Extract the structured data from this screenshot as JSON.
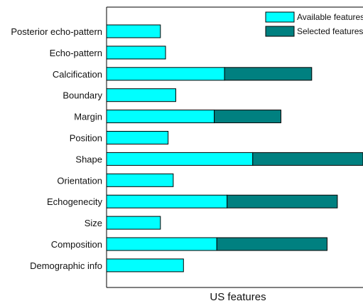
{
  "chart_data": {
    "type": "bar",
    "orientation": "horizontal",
    "stacked": true,
    "title": "",
    "xlabel": "US features",
    "ylabel": "",
    "xlim": [
      0,
      10
    ],
    "categories": [
      "Posterior echo-pattern",
      "Echo-pattern",
      "Calcification",
      "Boundary",
      "Margin",
      "Position",
      "Shape",
      "Orientation",
      "Echogenecity",
      "Size",
      "Composition",
      "Demographic info"
    ],
    "series": [
      {
        "name": "Available features",
        "color": "#00FFFF",
        "values": [
          2.1,
          2.3,
          4.6,
          2.7,
          4.2,
          2.4,
          5.7,
          2.6,
          4.7,
          2.1,
          4.3,
          3.0
        ]
      },
      {
        "name": "Selected features",
        "color": "#008080",
        "values": [
          0,
          0,
          3.4,
          0,
          2.6,
          0,
          4.3,
          0,
          4.3,
          0,
          4.3,
          0
        ]
      }
    ],
    "legend": {
      "position": "top-right"
    },
    "grid": false
  }
}
